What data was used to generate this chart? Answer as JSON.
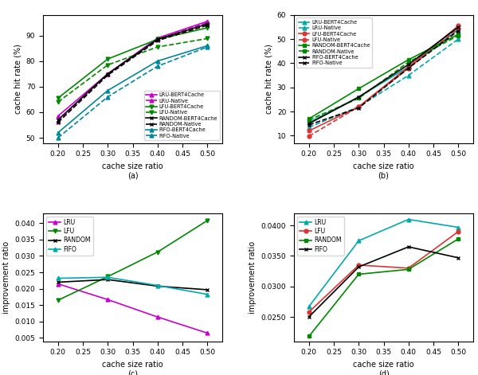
{
  "x": [
    0.2,
    0.3,
    0.4,
    0.5
  ],
  "subplot_a": {
    "title": "(a)",
    "xlabel": "cache size ratio",
    "ylabel": "cache hit rate (%)",
    "ylim": [
      48,
      98
    ],
    "series": [
      {
        "label": "LRU-BERT4Cache",
        "color": "#cc00cc",
        "linestyle": "-",
        "marker": "^",
        "data": [
          58.5,
          75.0,
          89.0,
          95.5
        ]
      },
      {
        "label": "LRU-Native",
        "color": "#cc00cc",
        "linestyle": "--",
        "marker": "^",
        "data": [
          56.5,
          75.0,
          88.5,
          95.0
        ]
      },
      {
        "label": "LFU-BERT4Cache",
        "color": "#008800",
        "linestyle": "-",
        "marker": "v",
        "data": [
          65.5,
          80.8,
          88.5,
          93.0
        ]
      },
      {
        "label": "LFU-Native",
        "color": "#008800",
        "linestyle": "--",
        "marker": "v",
        "data": [
          64.0,
          78.5,
          85.5,
          88.8
        ]
      },
      {
        "label": "RANDOM-BERT4Cache",
        "color": "#000000",
        "linestyle": "-",
        "marker": "x",
        "data": [
          57.0,
          75.0,
          88.5,
          94.5
        ]
      },
      {
        "label": "RANDOM-Native",
        "color": "#000000",
        "linestyle": "--",
        "marker": "x",
        "data": [
          56.0,
          74.5,
          88.0,
          94.0
        ]
      },
      {
        "label": "FIFO-BERT4Cache",
        "color": "#008899",
        "linestyle": "-",
        "marker": "^",
        "data": [
          52.0,
          68.5,
          80.0,
          86.0
        ]
      },
      {
        "label": "FIFO-Native",
        "color": "#008899",
        "linestyle": "--",
        "marker": "^",
        "data": [
          50.0,
          66.0,
          78.0,
          85.5
        ]
      }
    ]
  },
  "subplot_b": {
    "title": "(b)",
    "xlabel": "cache size ratio",
    "ylabel": "cache hit rate (%)",
    "ylim": [
      7,
      60
    ],
    "series": [
      {
        "label": "LRU-BERT4Cache",
        "color": "#00aaaa",
        "linestyle": "-",
        "marker": "^",
        "data": [
          15.5,
          26.0,
          38.5,
          54.0
        ]
      },
      {
        "label": "LRU-Native",
        "color": "#00aaaa",
        "linestyle": "--",
        "marker": "^",
        "data": [
          13.5,
          22.0,
          35.0,
          50.0
        ]
      },
      {
        "label": "LFU-BERT4Cache",
        "color": "#dd3333",
        "linestyle": "-",
        "marker": "o",
        "data": [
          12.0,
          22.0,
          38.5,
          55.5
        ]
      },
      {
        "label": "LFU-Native",
        "color": "#dd3333",
        "linestyle": "--",
        "marker": "o",
        "data": [
          9.8,
          22.0,
          38.0,
          54.5
        ]
      },
      {
        "label": "RANDOM-BERT4Cache",
        "color": "#008800",
        "linestyle": "-",
        "marker": "s",
        "data": [
          17.0,
          29.5,
          41.5,
          52.0
        ]
      },
      {
        "label": "RANDOM-Native",
        "color": "#008800",
        "linestyle": "--",
        "marker": "s",
        "data": [
          16.5,
          25.5,
          40.5,
          51.5
        ]
      },
      {
        "label": "FIFO-BERT4Cache",
        "color": "#000000",
        "linestyle": "-",
        "marker": "x",
        "data": [
          15.0,
          26.0,
          39.5,
          55.0
        ]
      },
      {
        "label": "FIFO-Native",
        "color": "#000000",
        "linestyle": "--",
        "marker": "x",
        "data": [
          14.5,
          21.5,
          38.0,
          53.5
        ]
      }
    ]
  },
  "subplot_c": {
    "title": "(c)",
    "xlabel": "cache size ratio",
    "ylabel": "improvement ratio",
    "ylim": [
      0.004,
      0.043
    ],
    "series": [
      {
        "label": "LRU",
        "color": "#cc00cc",
        "linestyle": "-",
        "marker": "^",
        "data": [
          0.0215,
          0.0167,
          0.0114,
          0.0065
        ]
      },
      {
        "label": "LFU",
        "color": "#008800",
        "linestyle": "-",
        "marker": "v",
        "data": [
          0.0165,
          0.0237,
          0.0312,
          0.0408
        ]
      },
      {
        "label": "RANDOM",
        "color": "#000000",
        "linestyle": "-",
        "marker": "x",
        "data": [
          0.022,
          0.0228,
          0.0208,
          0.0197
        ]
      },
      {
        "label": "FIFO",
        "color": "#00aaaa",
        "linestyle": "-",
        "marker": "^",
        "data": [
          0.0232,
          0.0235,
          0.021,
          0.0183
        ]
      }
    ]
  },
  "subplot_d": {
    "title": "(d)",
    "xlabel": "cache size ratio",
    "ylabel": "improvement ratio",
    "ylim": [
      0.021,
      0.042
    ],
    "series": [
      {
        "label": "LRU",
        "color": "#00aaaa",
        "linestyle": "-",
        "marker": "^",
        "data": [
          0.0267,
          0.0375,
          0.041,
          0.0397
        ]
      },
      {
        "label": "LFU",
        "color": "#dd3333",
        "linestyle": "-",
        "marker": "o",
        "data": [
          0.0258,
          0.0335,
          0.033,
          0.039
        ]
      },
      {
        "label": "RANDOM",
        "color": "#008800",
        "linestyle": "-",
        "marker": "s",
        "data": [
          0.0218,
          0.032,
          0.0328,
          0.0378
        ]
      },
      {
        "label": "FIFO",
        "color": "#000000",
        "linestyle": "-",
        "marker": "x",
        "data": [
          0.025,
          0.0332,
          0.0365,
          0.0347
        ]
      }
    ]
  }
}
